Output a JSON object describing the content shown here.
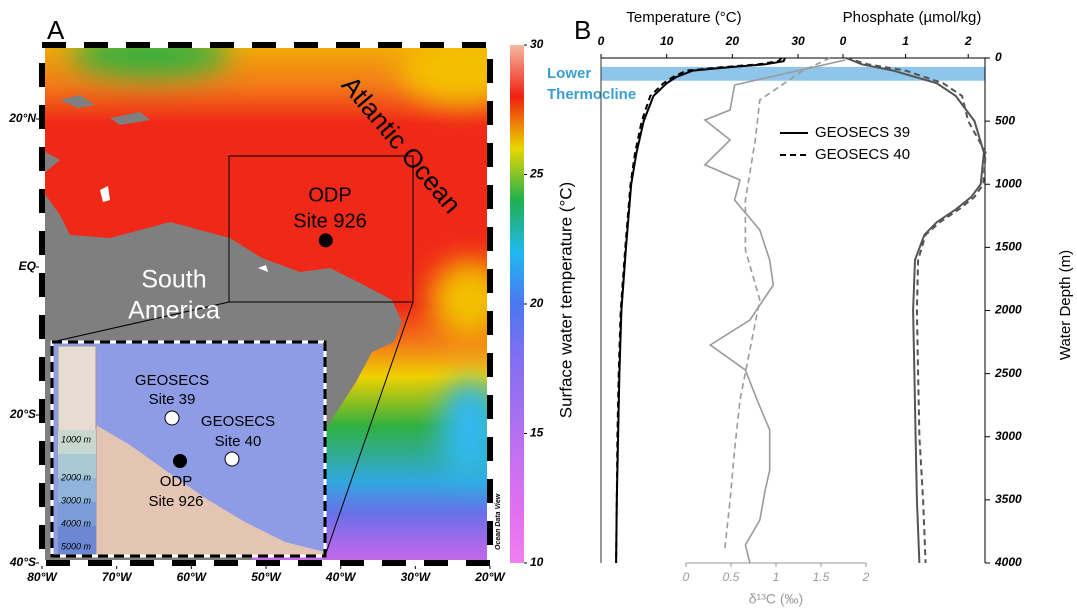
{
  "chart_data": [
    {
      "type": "map",
      "panel_label": "A",
      "xlim": [
        -80,
        -20
      ],
      "xticks": [
        {
          "value": -80,
          "label": "80°W"
        },
        {
          "value": -70,
          "label": "70°W"
        },
        {
          "value": -60,
          "label": "60°W"
        },
        {
          "value": -50,
          "label": "50°W"
        },
        {
          "value": -40,
          "label": "40°W"
        },
        {
          "value": -30,
          "label": "30°W"
        },
        {
          "value": -20,
          "label": "20°W"
        }
      ],
      "ylim": [
        -40,
        30
      ],
      "yticks": [
        {
          "value": -40,
          "label": "40°S"
        },
        {
          "value": -20,
          "label": "20°S"
        },
        {
          "value": 0,
          "label": "EQ"
        },
        {
          "value": 20,
          "label": "20°N"
        }
      ],
      "ocean_label": "Atlantic Ocean",
      "continent_label": [
        "South",
        "America"
      ],
      "site": {
        "name": [
          "ODP",
          "Site 926"
        ],
        "lon": -42,
        "lat": 3.6
      },
      "colorbar": {
        "label": "Surface water temperature (°C)",
        "lim": [
          10,
          30
        ],
        "ticks": [
          10,
          15,
          20,
          25,
          30
        ],
        "colors": [
          "#f07ff0",
          "#e070f0",
          "#c870f0",
          "#a070f0",
          "#8070f0",
          "#4a78f0",
          "#20b8f0",
          "#20b050",
          "#e8d800",
          "#f02010",
          "#f4b8a0"
        ]
      },
      "inset": {
        "stations": [
          {
            "name": [
              "GEOSECS",
              "Site 39"
            ]
          },
          {
            "name": [
              "GEOSECS",
              "Site 40"
            ]
          }
        ],
        "site": [
          "ODP",
          "Site 926"
        ],
        "depth_legend": [
          "1000 m",
          "2000 m",
          "3000 m",
          "4000 m",
          "5000 m"
        ]
      },
      "credit": "Ocean Data View"
    },
    {
      "type": "profile",
      "panel_label": "B",
      "ylabel": "Water Depth (m)",
      "ylim": [
        0,
        4000
      ],
      "yticks": [
        0,
        500,
        1000,
        1500,
        2000,
        2500,
        3000,
        3500,
        4000
      ],
      "axes": {
        "temperature": {
          "label": "Temperature (°C)",
          "xlim": [
            0,
            30
          ],
          "xticks": [
            0,
            10,
            20,
            30
          ],
          "color": "#000000"
        },
        "phosphate": {
          "label": "Phosphate (µmol/kg)",
          "xlim": [
            0,
            2.3
          ],
          "xticks": [
            0,
            1,
            2
          ],
          "color": "#555555"
        },
        "d13c": {
          "label": "δ¹³C (‰)",
          "xlim": [
            0,
            2
          ],
          "xticks": [
            0,
            0.5,
            1,
            1.5,
            2
          ],
          "color": "#9a9a9a"
        }
      },
      "band": {
        "label": [
          "Lower",
          "Thermocline"
        ],
        "depth": [
          70,
          180
        ],
        "color": "#8ec5ea"
      },
      "series": [
        {
          "name": "GEOSECS 39",
          "dashed": false,
          "temperature": {
            "depth": [
              0,
              25,
              50,
              75,
              100,
              150,
              200,
              300,
              500,
              750,
              1000,
              1250,
              1500,
              2000,
              2500,
              3000,
              3500,
              4000
            ],
            "values": [
              28,
              27.8,
              25,
              19,
              14,
              11.5,
              10,
              8,
              6.5,
              5.4,
              4.6,
              4.2,
              3.8,
              3.1,
              2.8,
              2.6,
              2.4,
              2.3
            ]
          },
          "phosphate": {
            "depth": [
              0,
              50,
              100,
              200,
              300,
              500,
              750,
              1000,
              1100,
              1200,
              1300,
              1400,
              1600,
              2000,
              2500,
              3000,
              3500,
              4000
            ],
            "values": [
              0.05,
              0.3,
              0.8,
              1.5,
              1.8,
              2.1,
              2.25,
              2.2,
              2.05,
              1.8,
              1.5,
              1.3,
              1.15,
              1.12,
              1.14,
              1.16,
              1.18,
              1.22
            ]
          },
          "d13c": {
            "depth": [
              16,
              214,
              412,
              491,
              649,
              847,
              966,
              1125,
              1362,
              1600,
              1798,
              2075,
              2273,
              2471,
              2709,
              2946,
              3263,
              3422,
              3660,
              3857,
              4000
            ],
            "values": [
              1.77,
              0.54,
              0.49,
              0.21,
              0.49,
              0.21,
              0.6,
              0.54,
              0.82,
              0.93,
              0.97,
              0.71,
              0.27,
              0.66,
              0.79,
              0.93,
              0.93,
              0.88,
              0.82,
              0.66,
              0.71
            ]
          }
        },
        {
          "name": "GEOSECS 40",
          "dashed": true,
          "temperature": {
            "depth": [
              0,
              25,
              50,
              75,
              100,
              150,
              200,
              300,
              500,
              750,
              1000,
              1250,
              1500,
              2000,
              2500,
              3000,
              3500,
              4000
            ],
            "values": [
              27.5,
              27,
              24,
              18,
              13,
              11,
              9.5,
              7.5,
              6.2,
              5.2,
              4.5,
              4.1,
              3.7,
              3,
              2.7,
              2.5,
              2.4,
              2.3
            ]
          },
          "phosphate": {
            "depth": [
              0,
              50,
              100,
              200,
              300,
              500,
              750,
              1000,
              1100,
              1200,
              1300,
              1400,
              1600,
              2000,
              2500,
              3000,
              3500,
              4000
            ],
            "values": [
              0.05,
              0.4,
              1,
              1.6,
              1.9,
              2,
              2.28,
              2.24,
              2.1,
              1.85,
              1.55,
              1.32,
              1.2,
              1.18,
              1.2,
              1.22,
              1.28,
              1.32
            ]
          },
          "d13c": {
            "depth": [
              0,
              100,
              333,
              649,
              1125,
              1520,
              1915,
              2312,
              2709,
              3105,
              3500,
              3900
            ],
            "values": [
              1.6,
              1.3,
              0.82,
              0.77,
              0.66,
              0.66,
              0.82,
              0.71,
              0.6,
              0.54,
              0.49,
              0.43
            ]
          }
        }
      ]
    }
  ]
}
